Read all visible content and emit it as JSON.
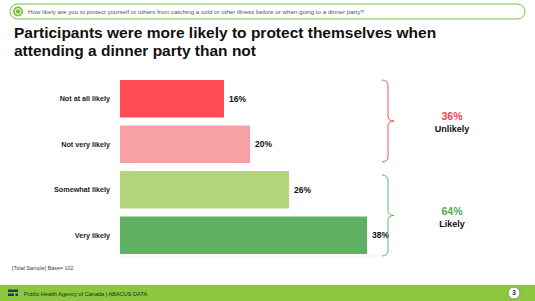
{
  "chart_data": {
    "type": "bar",
    "orientation": "horizontal",
    "subtitle": "How likely are you to protect yourself or others from catching a cold or other illness before or when going to a dinner party?",
    "title": "Participants were more likely to protect themselves when attending a dinner party than not",
    "categories": [
      "Not at all likely",
      "Not very likely",
      "Somewhat likely",
      "Very likely"
    ],
    "values": [
      16,
      20,
      26,
      38
    ],
    "value_labels": [
      "16%",
      "20%",
      "26%",
      "38%"
    ],
    "colors": [
      "#ff4b55",
      "#f7a1a5",
      "#b3d67a",
      "#5fb063"
    ],
    "xlim": [
      0,
      40
    ],
    "data_labels": true,
    "tick_labels": "y",
    "groups": [
      {
        "label": "Unlikely",
        "value": 36,
        "value_label": "36%",
        "color": "#f0404c",
        "categories": [
          "Not at all likely",
          "Not very likely"
        ]
      },
      {
        "label": "Likely",
        "value": 64,
        "value_label": "64%",
        "color": "#4caf50",
        "categories": [
          "Somewhat likely",
          "Very likely"
        ]
      }
    ],
    "note": "[Total Sample] Base= 102",
    "source": "Public Health Agency of Canada | ABACUS DATA",
    "page": 3
  }
}
